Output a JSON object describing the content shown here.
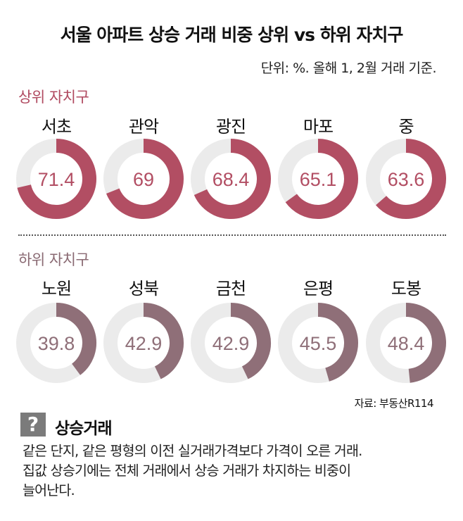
{
  "title": "서울 아파트 상승 거래 비중 상위 vs 하위 자치구",
  "subtitle": "단위: %. 올해 1, 2월 거래 기준.",
  "source": "자료: 부동산R114",
  "colors": {
    "top": "#b24e63",
    "bottom": "#8f6f78",
    "track": "#ebebeb"
  },
  "chart_data": [
    {
      "type": "pie",
      "variant": "donut",
      "group": "상위 자치구",
      "categories": [
        "서초",
        "관악",
        "광진",
        "마포",
        "중"
      ],
      "values": [
        71.4,
        69,
        68.4,
        65.1,
        63.6
      ],
      "value_labels": [
        "71.4",
        "69",
        "68.4",
        "65.1",
        "63.6"
      ],
      "max": 100,
      "unit": "%"
    },
    {
      "type": "pie",
      "variant": "donut",
      "group": "하위 자치구",
      "categories": [
        "노원",
        "성북",
        "금천",
        "은평",
        "도봉"
      ],
      "values": [
        39.8,
        42.9,
        42.9,
        45.5,
        48.4
      ],
      "value_labels": [
        "39.8",
        "42.9",
        "42.9",
        "45.5",
        "48.4"
      ],
      "max": 100,
      "unit": "%"
    }
  ],
  "note": {
    "icon": "?",
    "title": "상승거래",
    "lines": [
      "같은 단지, 같은 평형의 이전 실거래가격보다 가격이 오른 거래.",
      "집값 상승기에는 전체 거래에서 상승 거래가 차지하는 비중이",
      "늘어난다."
    ]
  }
}
